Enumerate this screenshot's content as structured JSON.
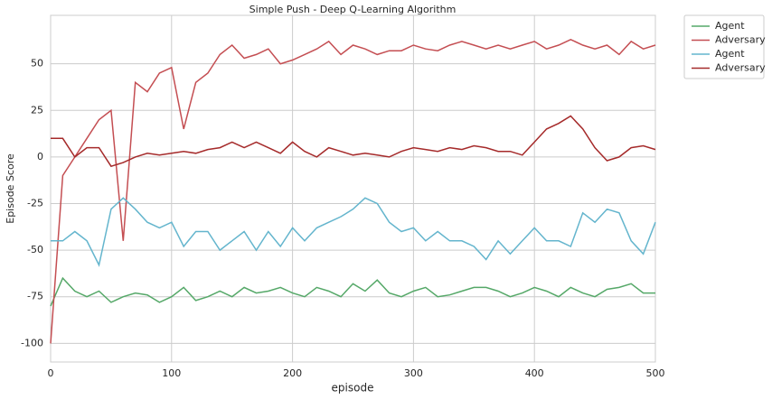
{
  "chart_data": {
    "type": "line",
    "title": "Simple Push - Deep Q-Learning Algorithm",
    "x_label": "episode",
    "y_label": "Episode Score",
    "x": [
      0,
      10,
      20,
      30,
      40,
      50,
      60,
      70,
      80,
      90,
      100,
      110,
      120,
      130,
      140,
      150,
      160,
      170,
      180,
      190,
      200,
      210,
      220,
      230,
      240,
      250,
      260,
      270,
      280,
      290,
      300,
      310,
      320,
      330,
      340,
      350,
      360,
      370,
      380,
      390,
      400,
      410,
      420,
      430,
      440,
      450,
      460,
      470,
      480,
      490,
      500
    ],
    "series": [
      {
        "name": "Agent",
        "color": "#55a868",
        "values": [
          -80,
          -65,
          -72,
          -75,
          -72,
          -78,
          -75,
          -73,
          -74,
          -78,
          -75,
          -70,
          -77,
          -75,
          -72,
          -75,
          -70,
          -73,
          -72,
          -70,
          -73,
          -75,
          -70,
          -72,
          -75,
          -68,
          -72,
          -66,
          -73,
          -75,
          -72,
          -70,
          -75,
          -74,
          -72,
          -70,
          -70,
          -72,
          -75,
          -73,
          -70,
          -72,
          -75,
          -70,
          -73,
          -75,
          -71,
          -70,
          -68,
          -73,
          -73
        ]
      },
      {
        "name": "Adversary",
        "color": "#c44e52",
        "values": [
          -100,
          -10,
          0,
          10,
          20,
          25,
          -45,
          40,
          35,
          45,
          48,
          15,
          40,
          45,
          55,
          60,
          53,
          55,
          58,
          50,
          52,
          55,
          58,
          62,
          55,
          60,
          58,
          55,
          57,
          57,
          60,
          58,
          57,
          60,
          62,
          60,
          58,
          60,
          58,
          60,
          62,
          58,
          60,
          63,
          60,
          58,
          60,
          55,
          62,
          58,
          60
        ]
      },
      {
        "name": "Agent",
        "color": "#64b5cd",
        "values": [
          -45,
          -45,
          -40,
          -45,
          -58,
          -28,
          -22,
          -28,
          -35,
          -38,
          -35,
          -48,
          -40,
          -40,
          -50,
          -45,
          -40,
          -50,
          -40,
          -48,
          -38,
          -45,
          -38,
          -35,
          -32,
          -28,
          -22,
          -25,
          -35,
          -40,
          -38,
          -45,
          -40,
          -45,
          -45,
          -48,
          -55,
          -45,
          -52,
          -45,
          -38,
          -45,
          -45,
          -48,
          -30,
          -35,
          -28,
          -30,
          -45,
          -52,
          -35
        ]
      },
      {
        "name": "Adversary",
        "color": "#a52a2a",
        "values": [
          10,
          10,
          0,
          5,
          5,
          -5,
          -3,
          0,
          2,
          1,
          2,
          3,
          2,
          4,
          5,
          8,
          5,
          8,
          5,
          2,
          8,
          3,
          0,
          5,
          3,
          1,
          2,
          1,
          0,
          3,
          5,
          4,
          3,
          5,
          4,
          6,
          5,
          3,
          3,
          1,
          8,
          15,
          18,
          22,
          15,
          5,
          -2,
          0,
          5,
          6,
          4
        ]
      }
    ],
    "xlim": [
      0,
      500
    ],
    "xticks": [
      0,
      100,
      200,
      300,
      400,
      500
    ],
    "ylim": [
      -110,
      76
    ],
    "yticks": [
      -100,
      -75,
      -50,
      -25,
      0,
      25,
      50
    ],
    "grid": true,
    "legend": "outside-upper-right"
  }
}
